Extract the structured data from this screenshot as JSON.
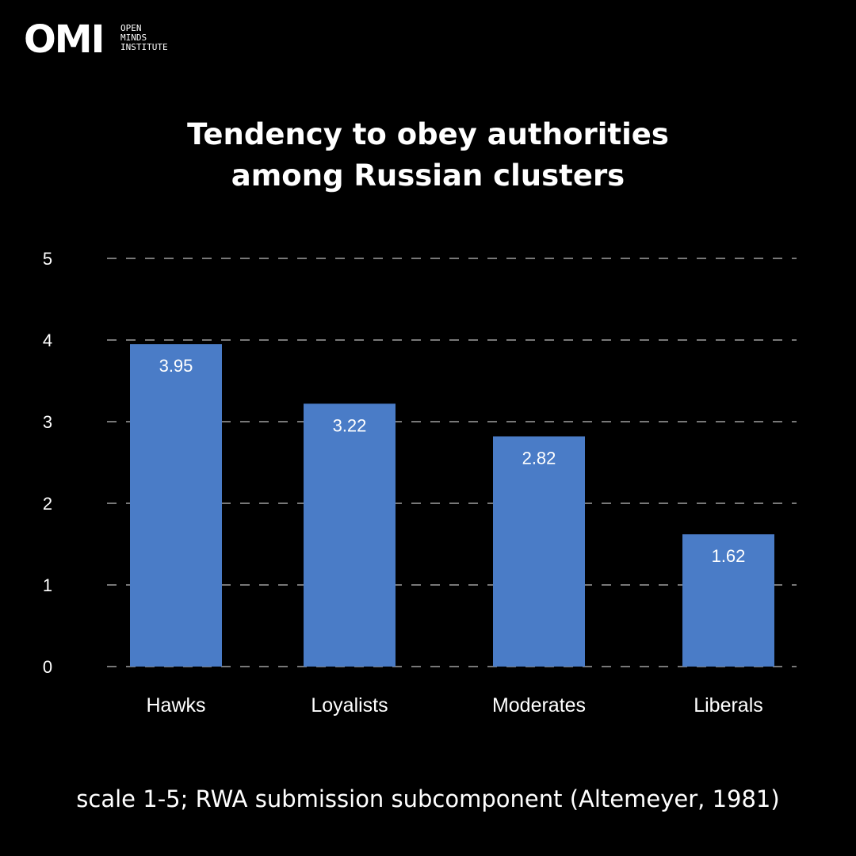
{
  "logo": {
    "mark": "OMI",
    "subtitle": "OPEN\nMINDS\nINSTITUTE"
  },
  "caption": "scale 1-5; RWA submission subcomponent (Altemeyer, 1981)",
  "colors": {
    "background": "#000000",
    "bar": "#4a7cc7",
    "grid": "#bfbfbf",
    "text": "#ffffff"
  },
  "chart_data": {
    "type": "bar",
    "title": "Tendency to obey authorities\namong Russian clusters",
    "categories": [
      "Hawks",
      "Loyalists",
      "Moderates",
      "Liberals"
    ],
    "values": [
      3.95,
      3.22,
      2.82,
      1.62
    ],
    "data_labels": [
      "3.95",
      "3.22",
      "2.82",
      "1.62"
    ],
    "y_ticks": [
      0,
      1,
      2,
      3,
      4,
      5
    ],
    "ylim": [
      0,
      5
    ],
    "xlabel": "",
    "ylabel": "",
    "grid": true,
    "grid_style": "dashed",
    "legend": "none"
  }
}
